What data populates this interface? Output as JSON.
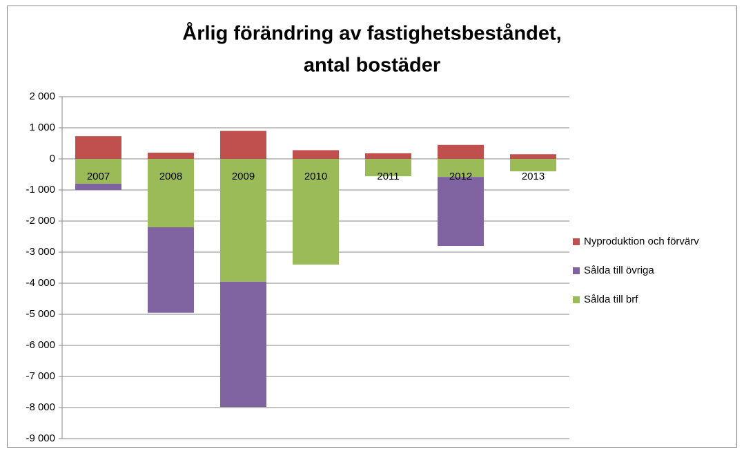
{
  "chart_data": {
    "type": "stacked_bar",
    "title": [
      "Årlig förändring av fastighetsbeståndet,",
      "antal bostäder"
    ],
    "categories": [
      "2007",
      "2008",
      "2009",
      "2010",
      "2011",
      "2012",
      "2013"
    ],
    "series": [
      {
        "name": "Sålda till brf",
        "color": "#9bbb59",
        "values": [
          -800,
          -2200,
          -3950,
          -3400,
          -560,
          -580,
          -400
        ]
      },
      {
        "name": "Sålda till övriga",
        "color": "#8064a2",
        "values": [
          -200,
          -2750,
          -4030,
          0,
          0,
          -2220,
          0
        ]
      },
      {
        "name": "Nyproduktion och förvärv",
        "color": "#c0504d",
        "values": [
          730,
          200,
          900,
          280,
          180,
          450,
          150
        ]
      }
    ],
    "ylim": [
      -9000,
      2000
    ],
    "yticks": [
      {
        "value": 2000,
        "label": "2 000"
      },
      {
        "value": 1000,
        "label": "1 000"
      },
      0,
      {
        "value": -1000,
        "label": "-1 000"
      },
      {
        "value": -2000,
        "label": "-2 000"
      },
      {
        "value": -3000,
        "label": "-3 000"
      },
      {
        "value": -4000,
        "label": "-4 000"
      },
      {
        "value": -5000,
        "label": "-5 000"
      },
      {
        "value": -6000,
        "label": "-6 000"
      },
      {
        "value": -7000,
        "label": "-7 000"
      },
      {
        "value": -8000,
        "label": "-8 000"
      },
      {
        "value": -9000,
        "label": "-9 000"
      }
    ],
    "grid": true,
    "legend": "right"
  }
}
